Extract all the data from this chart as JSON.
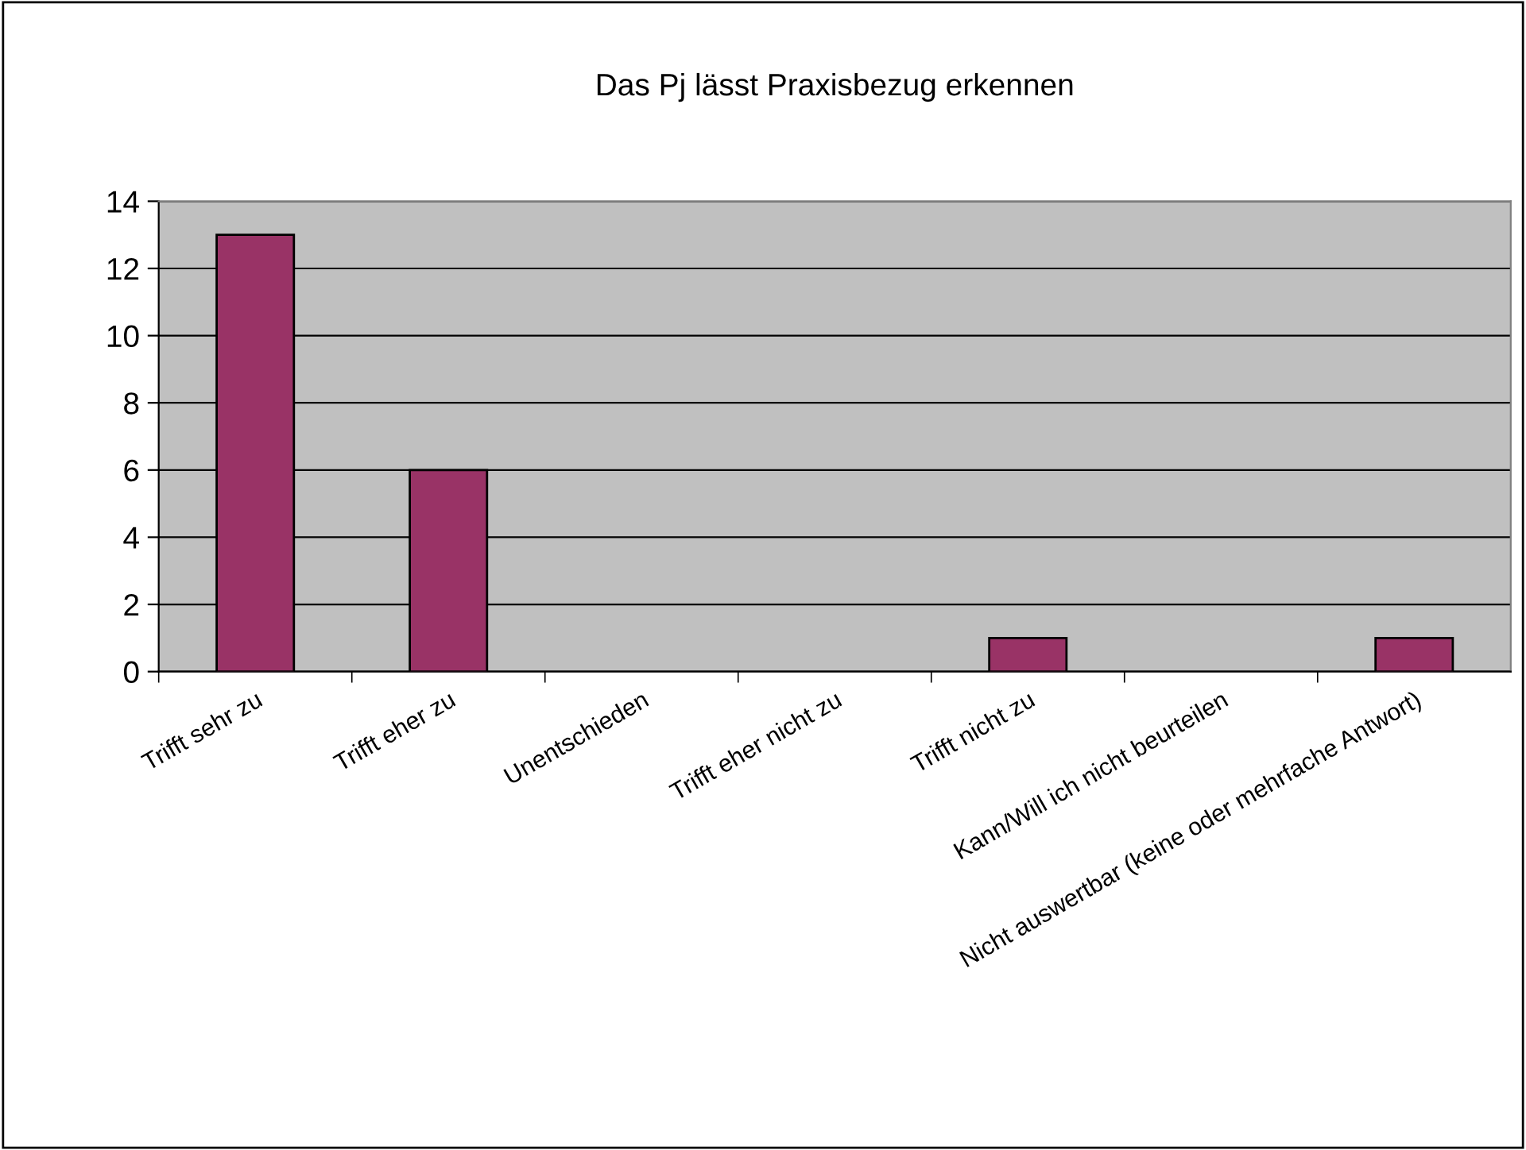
{
  "chart_data": {
    "type": "bar",
    "title": "Das Pj lässt Praxisbezug erkennen",
    "categories": [
      "Trifft sehr zu",
      "Trifft eher zu",
      "Unentschieden",
      "Trifft eher nicht zu",
      "Trifft nicht zu",
      "Kann/Will ich nicht beurteilen",
      "Nicht auswertbar (keine oder mehrfache Antwort)"
    ],
    "values": [
      13,
      6,
      0,
      0,
      1,
      0,
      1
    ],
    "color": "#993366",
    "ylim": [
      0,
      14
    ],
    "yticks": [
      0,
      2,
      4,
      6,
      8,
      10,
      12,
      14
    ],
    "grid": "y",
    "legend": false
  }
}
